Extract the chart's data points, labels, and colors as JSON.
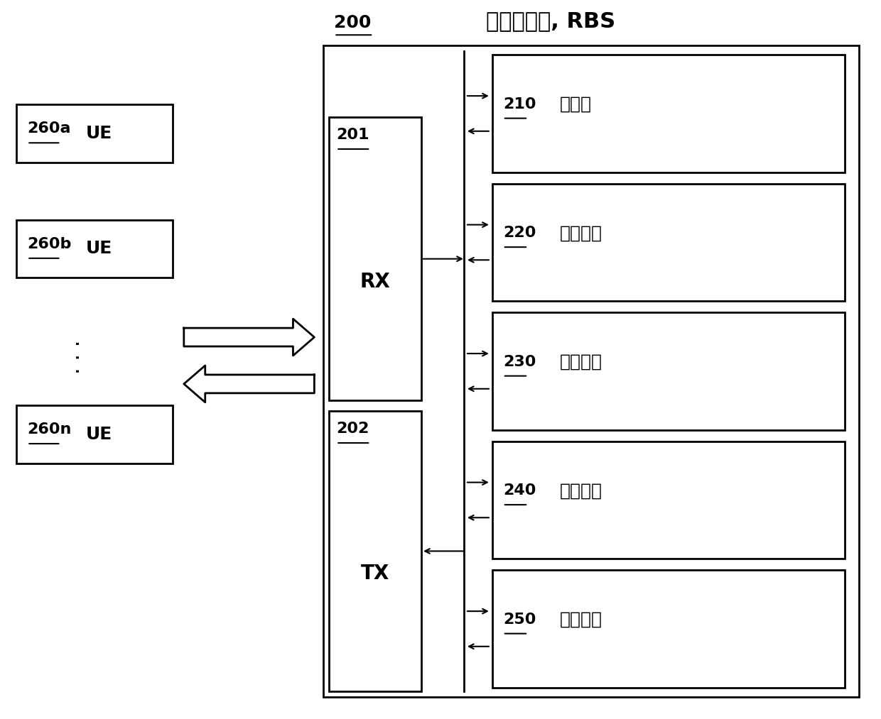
{
  "bg_color": "#ffffff",
  "title_rbs": "无线电基站, RBS",
  "label_200": "200",
  "label_201": "201",
  "label_202": "202",
  "label_rx": "RX",
  "label_tx": "TX",
  "label_260a": "260a",
  "label_260b": "260b",
  "label_260n": "260n",
  "label_ue": "UE",
  "label_210": "210",
  "label_220": "220",
  "label_230": "230",
  "label_240": "240",
  "label_250": "250",
  "text_210": "存储器",
  "text_220": "接收单元",
  "text_230": "确定单元",
  "text_240": "调度单元",
  "text_250": "控制单元",
  "font_size_label": 16,
  "font_size_text": 18,
  "font_size_title": 22
}
